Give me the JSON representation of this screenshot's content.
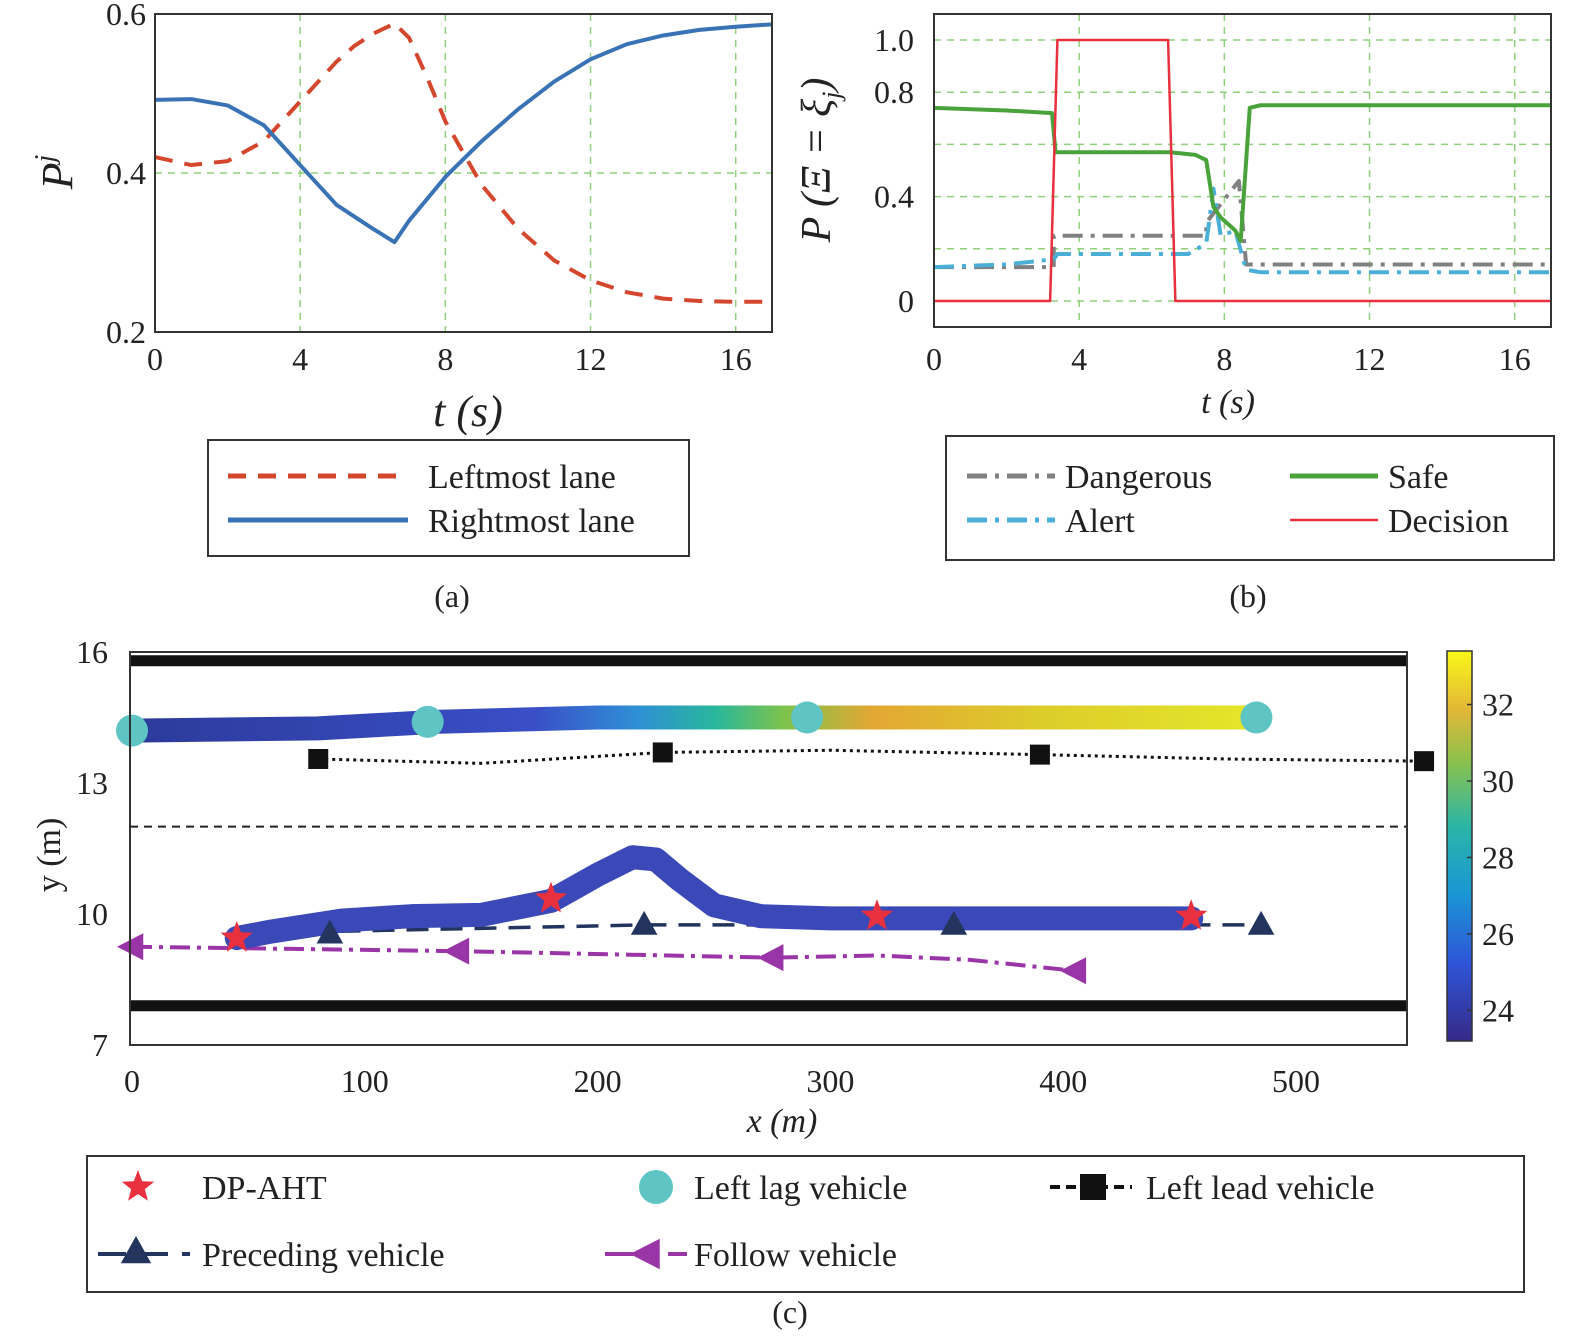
{
  "chart_data": [
    {
      "type": "line",
      "caption": "(a)",
      "xlabel": "t (s)",
      "ylabel": "P",
      "ylabel_sup": "j",
      "xlim": [
        0,
        17
      ],
      "ylim": [
        0.2,
        0.6
      ],
      "xticks": [
        0,
        4,
        8,
        12,
        16
      ],
      "yticks": [
        0.2,
        0.4,
        0.6
      ],
      "grid": true,
      "legend_position": "below",
      "series": [
        {
          "name": "Leftmost lane",
          "color": "#d4472c",
          "style": "dashed",
          "x": [
            0,
            1,
            2,
            3,
            4,
            5,
            5.5,
            6,
            6.6,
            7,
            7.5,
            8,
            8.5,
            9,
            10,
            11,
            12,
            13,
            14,
            15,
            16,
            17
          ],
          "y": [
            0.42,
            0.41,
            0.415,
            0.44,
            0.49,
            0.54,
            0.56,
            0.575,
            0.588,
            0.57,
            0.52,
            0.465,
            0.425,
            0.385,
            0.33,
            0.29,
            0.265,
            0.25,
            0.242,
            0.239,
            0.238,
            0.238
          ]
        },
        {
          "name": "Rightmost lane",
          "color": "#3a73b5",
          "style": "solid",
          "x": [
            0,
            1,
            2,
            3,
            4,
            5,
            6,
            6.6,
            7,
            8,
            9,
            10,
            11,
            12,
            13,
            14,
            15,
            16,
            17
          ],
          "y": [
            0.492,
            0.493,
            0.485,
            0.46,
            0.41,
            0.36,
            0.33,
            0.313,
            0.34,
            0.395,
            0.44,
            0.48,
            0.515,
            0.543,
            0.562,
            0.573,
            0.58,
            0.584,
            0.587
          ]
        }
      ]
    },
    {
      "type": "line",
      "caption": "(b)",
      "xlabel": "t (s)",
      "ylabel": "P (Ξ = ξ",
      "ylabel_sub": "j",
      "ylabel_end": ")",
      "xlim": [
        0,
        17
      ],
      "ylim": [
        -0.1,
        1.1
      ],
      "xticks": [
        0,
        4,
        8,
        12,
        16
      ],
      "yticks": [
        0,
        0.4,
        0.8,
        1.0
      ],
      "ytick_labels": [
        "0",
        "0.4",
        "0.8",
        "1.0"
      ],
      "grid": true,
      "legend_position": "below",
      "series": [
        {
          "name": "Dangerous",
          "color": "#808080",
          "style": "dashdot",
          "x": [
            0,
            3.3,
            3.3,
            7.5,
            7.5,
            8.4,
            8.6,
            17
          ],
          "y": [
            0.13,
            0.13,
            0.25,
            0.25,
            0.3,
            0.46,
            0.14,
            0.14
          ]
        },
        {
          "name": "Alert",
          "color": "#4aafd6",
          "style": "dashdot",
          "x": [
            0,
            2,
            3.3,
            3.4,
            5,
            7,
            7.5,
            7.7,
            7.9,
            8.3,
            8.6,
            9,
            17
          ],
          "y": [
            0.13,
            0.14,
            0.16,
            0.18,
            0.18,
            0.18,
            0.22,
            0.43,
            0.25,
            0.27,
            0.12,
            0.11,
            0.11
          ]
        },
        {
          "name": "Safe",
          "color": "#4aa33a",
          "style": "solid",
          "x": [
            0,
            2,
            3.25,
            3.35,
            5,
            6.5,
            7.2,
            7.5,
            7.7,
            7.9,
            8.3,
            8.45,
            8.7,
            9,
            17
          ],
          "y": [
            0.74,
            0.73,
            0.72,
            0.57,
            0.57,
            0.57,
            0.56,
            0.54,
            0.36,
            0.32,
            0.27,
            0.23,
            0.74,
            0.75,
            0.75
          ]
        },
        {
          "name": "Decision",
          "color": "#e8303f",
          "style": "solid",
          "x": [
            0,
            3.2,
            3.4,
            6.45,
            6.65,
            17
          ],
          "y": [
            0,
            0,
            1,
            1,
            0,
            0
          ]
        }
      ]
    },
    {
      "type": "scatter",
      "caption": "(c)",
      "xlabel": "x (m)",
      "ylabel": "y (m)",
      "xlim": [
        0,
        550
      ],
      "ylim": [
        7,
        16
      ],
      "xticks": [
        0,
        100,
        200,
        300,
        400,
        500
      ],
      "yticks": [
        7,
        10,
        13,
        16
      ],
      "grid": false,
      "colorbar": {
        "ticks": [
          24,
          26,
          28,
          30,
          32
        ],
        "min": 23.2,
        "max": 33.4
      },
      "road": {
        "boundaries": [
          15.8,
          7.9
        ],
        "lane_divider": 12.0
      },
      "legend_position": "below",
      "series": [
        {
          "name": "DP-AHT",
          "marker": "star",
          "color": "#e8303f",
          "path_x": [
            45,
            60,
            90,
            120,
            150,
            180,
            200,
            215,
            225,
            235,
            250,
            270,
            300,
            350,
            400,
            455
          ],
          "path_y": [
            9.45,
            9.6,
            9.85,
            9.95,
            9.98,
            10.3,
            10.9,
            11.3,
            11.25,
            10.8,
            10.2,
            9.95,
            9.9,
            9.9,
            9.9,
            9.9
          ],
          "marker_x": [
            45,
            180,
            320,
            455
          ],
          "marker_y": [
            9.45,
            10.35,
            9.95,
            9.95
          ]
        },
        {
          "name": "Left lag vehicle",
          "marker": "circle",
          "color": "#5ec5c4",
          "path_x": [
            0,
            80,
            130,
            200,
            290,
            380,
            483
          ],
          "path_y": [
            14.2,
            14.25,
            14.4,
            14.5,
            14.5,
            14.5,
            14.5
          ],
          "colorbar_values": [
            23.6,
            24.0,
            24.6,
            28.0,
            30.5,
            32.5,
            33.2
          ],
          "marker_x": [
            0,
            127,
            290,
            483
          ],
          "marker_y": [
            14.2,
            14.4,
            14.5,
            14.5
          ]
        },
        {
          "name": "Left lead vehicle",
          "marker": "square",
          "color": "#111111",
          "x": [
            80,
            150,
            228,
            300,
            390,
            470,
            555
          ],
          "y": [
            13.55,
            13.45,
            13.7,
            13.75,
            13.65,
            13.55,
            13.5
          ],
          "marker_x": [
            80,
            228,
            390,
            555
          ],
          "marker_y": [
            13.55,
            13.7,
            13.65,
            13.5
          ]
        },
        {
          "name": "Preceding vehicle",
          "marker": "triangle",
          "color": "#23345f",
          "x": [
            45,
            85,
            220,
            353,
            485
          ],
          "y": [
            9.45,
            9.6,
            9.75,
            9.75,
            9.75
          ],
          "marker_x": [
            85,
            220,
            353,
            485
          ],
          "marker_y": [
            9.55,
            9.75,
            9.75,
            9.75
          ]
        },
        {
          "name": "Follow vehicle",
          "marker": "triangle-left",
          "color": "#9a35a8",
          "x": [
            0,
            140,
            275,
            320,
            360,
            405
          ],
          "y": [
            9.25,
            9.15,
            9.0,
            9.05,
            8.95,
            8.7
          ],
          "marker_x": [
            0,
            140,
            275,
            405
          ],
          "marker_y": [
            9.25,
            9.15,
            9.0,
            8.7
          ]
        }
      ]
    }
  ]
}
